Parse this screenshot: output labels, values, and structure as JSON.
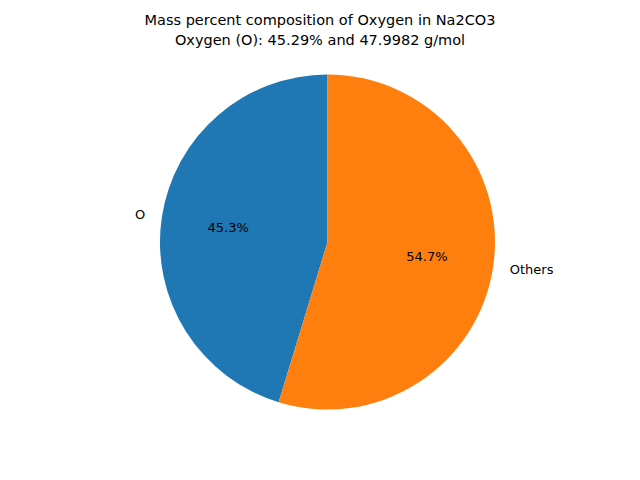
{
  "chart_data": {
    "type": "pie",
    "title": "Mass percent composition of Oxygen in Na2CO3",
    "subtitle": "Oxygen (O): 45.29% and 47.9982 g/mol",
    "categories": [
      "O",
      "Others"
    ],
    "values": [
      45.29,
      54.71
    ],
    "value_labels": [
      "45.3%",
      "54.7%"
    ],
    "colors": [
      "#1f77b4",
      "#ff7f0e"
    ],
    "data_labels": true
  }
}
